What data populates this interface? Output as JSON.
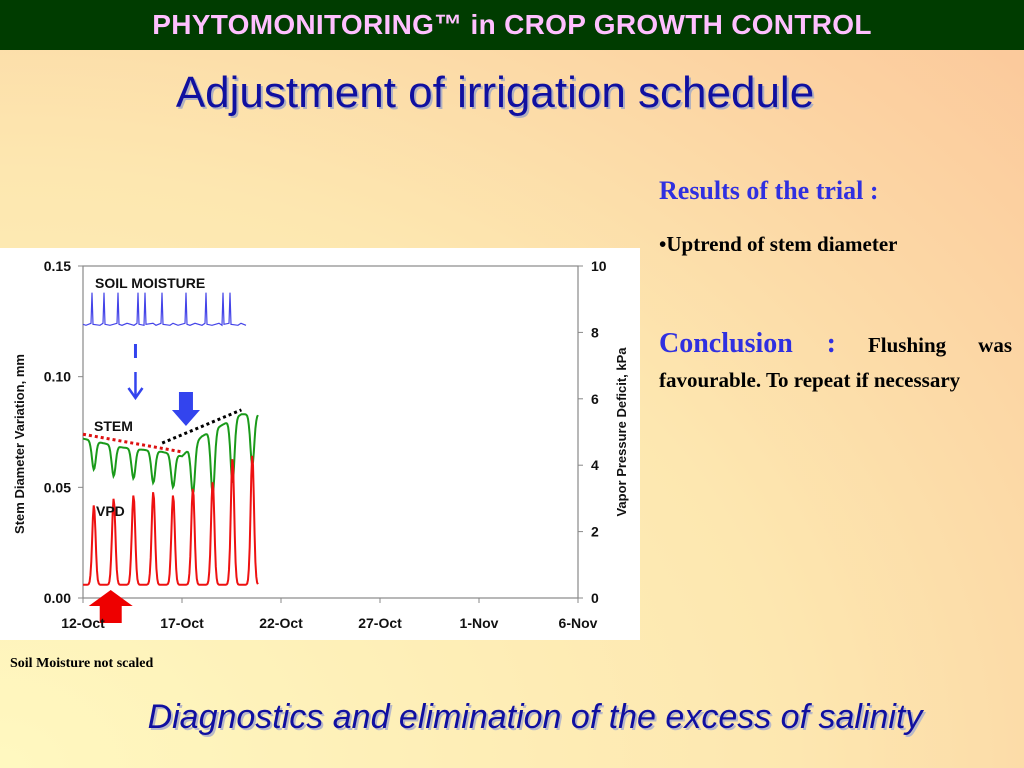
{
  "header": {
    "text": "PHYTOMONITORING™ in CROP GROWTH CONTROL"
  },
  "title": "Adjustment of irrigation schedule",
  "results": {
    "heading": "Results of the trial :",
    "bullet": "•Uptrend of stem diameter"
  },
  "conclusion": {
    "label": "Conclusion :",
    "text": "Flushing was favourable. To repeat if necessary"
  },
  "footnote": "Soil Moisture not scaled",
  "subtitle": "Diagnostics and elimination of the excess of salinity",
  "colors": {
    "header_bg": "#003c00",
    "header_text": "#ffc0ff",
    "title": "#1010a0",
    "accent_blue": "#3030e0",
    "soil_moisture": "#4444e8",
    "stem": "#1a9a1a",
    "vpd": "#ee1111",
    "trend_before": "#dd1111",
    "trend_after": "#000000",
    "arrow_red": "#ee0000",
    "arrow_blue": "#3344ee"
  },
  "chart_data": {
    "type": "line",
    "x_ticks": [
      "12-Oct",
      "17-Oct",
      "22-Oct",
      "27-Oct",
      "1-Nov",
      "6-Nov"
    ],
    "xlim": [
      "12-Oct",
      "6-Nov"
    ],
    "ylabel": "Stem Diameter Variation, mm",
    "ylim": [
      0,
      0.15
    ],
    "y_ticks": [
      "0.00",
      "0.05",
      "0.10",
      "0.15"
    ],
    "y2label": "Vapor Pressure Deficit, kPa",
    "y2lim": [
      0,
      10
    ],
    "y2_ticks": [
      "0",
      "2",
      "4",
      "6",
      "8",
      "10"
    ],
    "grid": false,
    "series": [
      {
        "name": "SOIL MOISTURE",
        "note": "not scaled",
        "start": "12-Oct",
        "end": "20-Oct",
        "baseline": 0.125,
        "peak": 0.138
      },
      {
        "name": "STEM",
        "start": "12-Oct",
        "end": "20-Oct",
        "x": [
          "12-Oct",
          "13-Oct",
          "14-Oct",
          "15-Oct",
          "16-Oct",
          "17-Oct",
          "18-Oct",
          "19-Oct",
          "20-Oct"
        ],
        "daily_max": [
          0.072,
          0.07,
          0.068,
          0.067,
          0.066,
          0.064,
          0.073,
          0.078,
          0.083
        ],
        "daily_min": [
          0.058,
          0.055,
          0.054,
          0.052,
          0.05,
          0.047,
          0.047,
          0.052,
          0.06
        ]
      },
      {
        "name": "VPD",
        "axis": "y2",
        "unit": "kPa",
        "start": "12-Oct",
        "end": "20-Oct",
        "x": [
          "12-Oct",
          "13-Oct",
          "14-Oct",
          "15-Oct",
          "16-Oct",
          "17-Oct",
          "18-Oct",
          "19-Oct",
          "20-Oct"
        ],
        "daily_max": [
          2.8,
          3.0,
          3.1,
          3.2,
          3.1,
          3.3,
          3.5,
          4.2,
          4.3
        ],
        "daily_min": [
          0.4,
          0.4,
          0.4,
          0.4,
          0.4,
          0.4,
          0.4,
          0.4,
          0.4
        ]
      }
    ],
    "annotations": [
      {
        "kind": "trend-line",
        "style": "dotted",
        "color": "red",
        "from": [
          "12-Oct",
          0.074
        ],
        "to": [
          "17-Oct",
          0.066
        ]
      },
      {
        "kind": "trend-line",
        "style": "dotted",
        "color": "black",
        "from": [
          "16-Oct",
          0.07
        ],
        "to": [
          "20-Oct",
          0.085
        ]
      },
      {
        "kind": "arrow",
        "direction": "up",
        "color": "red",
        "at": "13-Oct"
      },
      {
        "kind": "arrow",
        "direction": "down",
        "color": "blue",
        "at": "15-Oct"
      },
      {
        "kind": "arrow",
        "direction": "down",
        "color": "blue",
        "at": "17-Oct"
      }
    ]
  }
}
